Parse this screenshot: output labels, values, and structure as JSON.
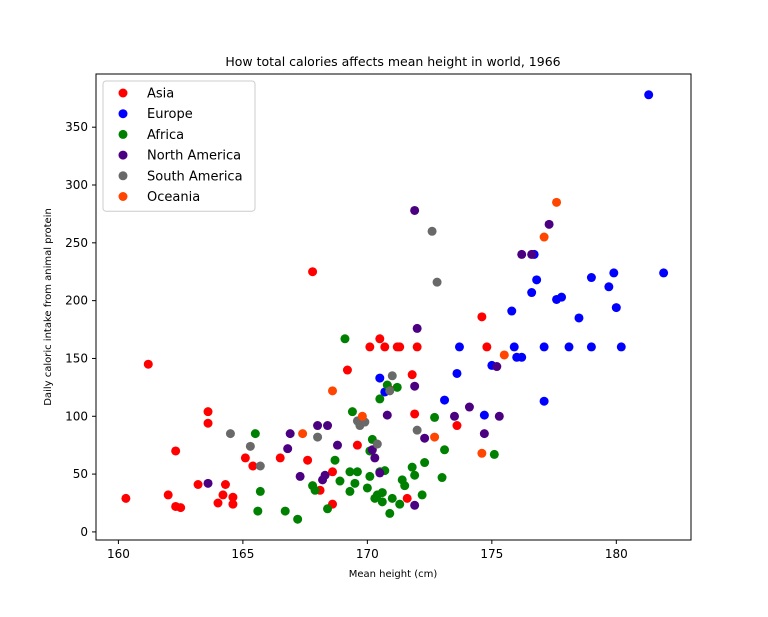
{
  "chart_data": {
    "type": "scatter",
    "title": "How total calories affects mean height in world, 1966",
    "xlabel": "Mean height (cm)",
    "ylabel": "Daily caloric intake from animal protein",
    "xlim": [
      159.1,
      183.0
    ],
    "ylim": [
      -7,
      396
    ],
    "xticks": [
      160,
      165,
      170,
      175,
      180
    ],
    "yticks": [
      0,
      50,
      100,
      150,
      200,
      250,
      300,
      350
    ],
    "grid": false,
    "legend_position": "top-left",
    "series": [
      {
        "name": "Asia",
        "color": "#ff0000",
        "x": [
          160.3,
          161.2,
          162.0,
          162.3,
          162.3,
          162.5,
          163.2,
          163.6,
          163.6,
          164.0,
          164.2,
          164.3,
          164.6,
          164.6,
          165.1,
          165.4,
          166.5,
          167.6,
          167.8,
          168.1,
          168.6,
          168.6,
          169.2,
          169.6,
          170.1,
          170.5,
          170.7,
          170.9,
          171.2,
          171.3,
          171.6,
          171.8,
          171.9,
          172.0,
          173.6,
          174.6,
          174.8
        ],
        "y": [
          29,
          145,
          32,
          70,
          22,
          21,
          41,
          104,
          94,
          25,
          32,
          41,
          30,
          24,
          64,
          57,
          64,
          62,
          225,
          36,
          24,
          52,
          140,
          75,
          160,
          167,
          160,
          123,
          160,
          160,
          29,
          136,
          102,
          160,
          92,
          186,
          160
        ]
      },
      {
        "name": "Europe",
        "color": "#0000ff",
        "x": [
          170.5,
          170.7,
          173.1,
          173.6,
          173.7,
          175.0,
          175.8,
          175.9,
          176.0,
          176.2,
          176.6,
          176.7,
          176.8,
          177.1,
          177.1,
          177.6,
          177.8,
          178.1,
          178.5,
          179.0,
          179.0,
          179.7,
          179.9,
          180.0,
          180.2,
          181.3,
          181.9,
          174.7
        ],
        "y": [
          133,
          121,
          114,
          137,
          160,
          144,
          191,
          160,
          151,
          151,
          207,
          240,
          218,
          160,
          113,
          201,
          203,
          160,
          185,
          220,
          160,
          212,
          224,
          194,
          160,
          378,
          224,
          101
        ]
      },
      {
        "name": "Africa",
        "color": "#008000",
        "x": [
          165.5,
          165.6,
          165.7,
          166.7,
          167.2,
          167.8,
          167.9,
          168.4,
          168.7,
          168.9,
          169.1,
          169.3,
          169.3,
          169.4,
          169.5,
          169.6,
          169.8,
          170.0,
          170.1,
          170.1,
          170.2,
          170.3,
          170.4,
          170.5,
          170.5,
          170.6,
          170.6,
          170.7,
          170.8,
          170.9,
          171.0,
          171.2,
          171.3,
          171.4,
          171.5,
          171.8,
          171.9,
          172.2,
          172.3,
          172.7,
          173.0,
          173.1,
          175.1
        ],
        "y": [
          85,
          18,
          35,
          18,
          11,
          40,
          36,
          20,
          62,
          44,
          167,
          52,
          35,
          104,
          42,
          52,
          95,
          38,
          70,
          48,
          80,
          29,
          32,
          52,
          115,
          26,
          34,
          53,
          127,
          16,
          29,
          125,
          24,
          45,
          40,
          56,
          49,
          32,
          60,
          99,
          47,
          71,
          67
        ]
      },
      {
        "name": "North America",
        "color": "#4b0082",
        "x": [
          163.6,
          166.8,
          166.9,
          167.3,
          168.0,
          168.2,
          168.3,
          168.4,
          168.8,
          170.2,
          170.3,
          170.5,
          170.8,
          171.9,
          171.9,
          171.9,
          172.0,
          172.3,
          173.5,
          174.1,
          174.7,
          175.2,
          175.3,
          176.2,
          176.6,
          177.3
        ],
        "y": [
          42,
          72,
          85,
          48,
          92,
          45,
          49,
          92,
          75,
          71,
          64,
          51,
          101,
          278,
          23,
          126,
          176,
          81,
          100,
          108,
          85,
          143,
          100,
          240,
          240,
          266
        ]
      },
      {
        "name": "South America",
        "color": "#696969",
        "x": [
          164.5,
          165.3,
          165.7,
          168.0,
          169.6,
          169.7,
          169.9,
          170.4,
          170.9,
          171.0,
          172.0,
          172.6,
          172.8
        ],
        "y": [
          85,
          74,
          57,
          82,
          96,
          92,
          95,
          76,
          122,
          135,
          88,
          260,
          216
        ]
      },
      {
        "name": "Oceania",
        "color": "#ff4500",
        "x": [
          167.4,
          168.6,
          169.8,
          172.7,
          174.6,
          175.5,
          177.1,
          177.6
        ],
        "y": [
          85,
          122,
          100,
          82,
          68,
          153,
          255,
          285
        ]
      }
    ]
  }
}
